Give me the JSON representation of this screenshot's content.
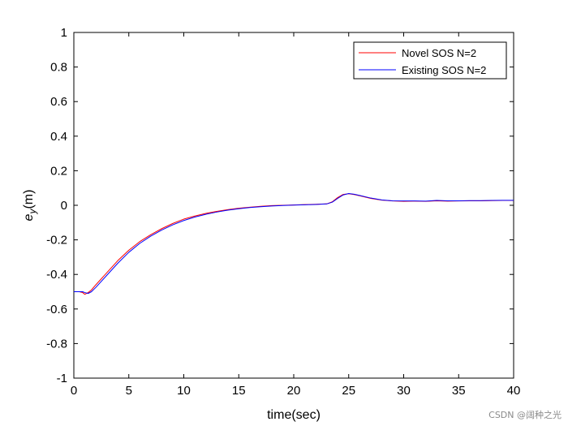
{
  "chart_data": {
    "type": "line",
    "xlabel": "time(sec)",
    "ylabel": {
      "base": "e",
      "sub": "y",
      "suffix": "(m)"
    },
    "xlim": [
      0,
      40
    ],
    "ylim": [
      -1,
      1
    ],
    "xticks": [
      0,
      5,
      10,
      15,
      20,
      25,
      30,
      35,
      40
    ],
    "yticks": [
      -1,
      -0.8,
      -0.6,
      -0.4,
      -0.2,
      0,
      0.2,
      0.4,
      0.6,
      0.8,
      1
    ],
    "grid": false,
    "legend_position": "top-right",
    "series": [
      {
        "name": "Novel SOS N=2",
        "color": "#ff0000",
        "x": [
          0,
          0.5,
          0.8,
          1.0,
          1.3,
          1.6,
          2,
          3,
          4,
          5,
          6,
          7,
          8,
          9,
          10,
          11,
          12,
          13,
          14,
          15,
          16,
          17,
          18,
          19,
          20,
          21,
          22,
          23,
          23.5,
          24,
          24.5,
          25,
          25.5,
          26,
          27,
          28,
          29,
          30,
          31,
          32,
          33,
          34,
          35,
          36,
          37,
          38,
          39,
          40
        ],
        "y": [
          -0.5,
          -0.5,
          -0.505,
          -0.515,
          -0.505,
          -0.49,
          -0.46,
          -0.39,
          -0.32,
          -0.26,
          -0.21,
          -0.17,
          -0.135,
          -0.105,
          -0.08,
          -0.062,
          -0.047,
          -0.035,
          -0.025,
          -0.017,
          -0.011,
          -0.006,
          -0.002,
          0.0,
          0.002,
          0.004,
          0.006,
          0.008,
          0.02,
          0.045,
          0.063,
          0.067,
          0.062,
          0.055,
          0.04,
          0.03,
          0.025,
          0.023,
          0.024,
          0.023,
          0.026,
          0.024,
          0.025,
          0.026,
          0.026,
          0.027,
          0.028,
          0.028
        ]
      },
      {
        "name": "Existing SOS N=2",
        "color": "#0000ff",
        "x": [
          0,
          0.5,
          0.8,
          1.0,
          1.3,
          1.6,
          2,
          3,
          4,
          5,
          6,
          7,
          8,
          9,
          10,
          11,
          12,
          13,
          14,
          15,
          16,
          17,
          18,
          19,
          20,
          21,
          22,
          23,
          23.5,
          24,
          24.5,
          25,
          25.5,
          26,
          27,
          28,
          29,
          30,
          31,
          32,
          33,
          34,
          35,
          36,
          37,
          38,
          39,
          40
        ],
        "y": [
          -0.5,
          -0.5,
          -0.5,
          -0.505,
          -0.51,
          -0.5,
          -0.475,
          -0.405,
          -0.335,
          -0.272,
          -0.22,
          -0.178,
          -0.143,
          -0.113,
          -0.088,
          -0.068,
          -0.052,
          -0.039,
          -0.028,
          -0.02,
          -0.013,
          -0.008,
          -0.004,
          -0.001,
          0.001,
          0.003,
          0.005,
          0.008,
          0.018,
          0.04,
          0.06,
          0.068,
          0.064,
          0.057,
          0.042,
          0.031,
          0.026,
          0.025,
          0.025,
          0.024,
          0.028,
          0.026,
          0.026,
          0.027,
          0.027,
          0.028,
          0.029,
          0.029
        ]
      }
    ]
  },
  "watermark": "CSDN @阔种之光"
}
